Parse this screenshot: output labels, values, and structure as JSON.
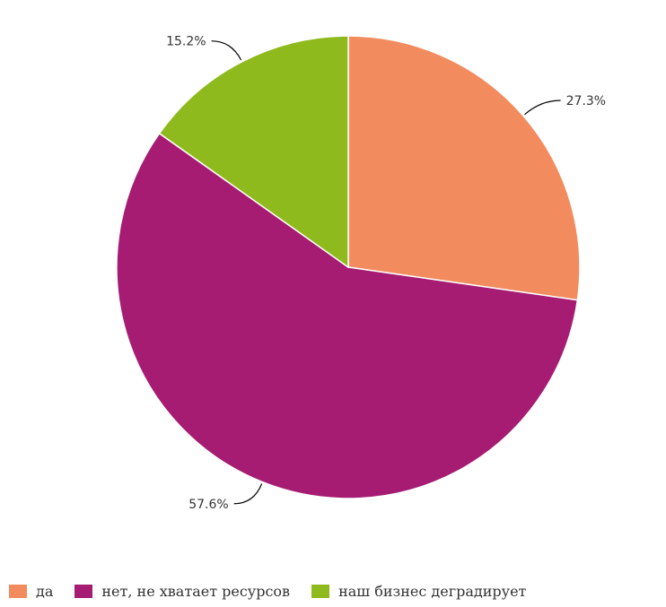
{
  "chart_data": {
    "type": "pie",
    "title": "",
    "slices": [
      {
        "label": "да",
        "value": 27.3,
        "value_label": "27.3%",
        "color": "#f28c5e"
      },
      {
        "label": "нет, не хватает ресурсов",
        "value": 57.6,
        "value_label": "57.6%",
        "color": "#a51c72"
      },
      {
        "label": "наш бизнес деградирует",
        "value": 15.2,
        "value_label": "15.2%",
        "color": "#8fba1e"
      }
    ],
    "start_angle": "12 o'clock",
    "direction": "clockwise",
    "legend_position": "bottom"
  }
}
